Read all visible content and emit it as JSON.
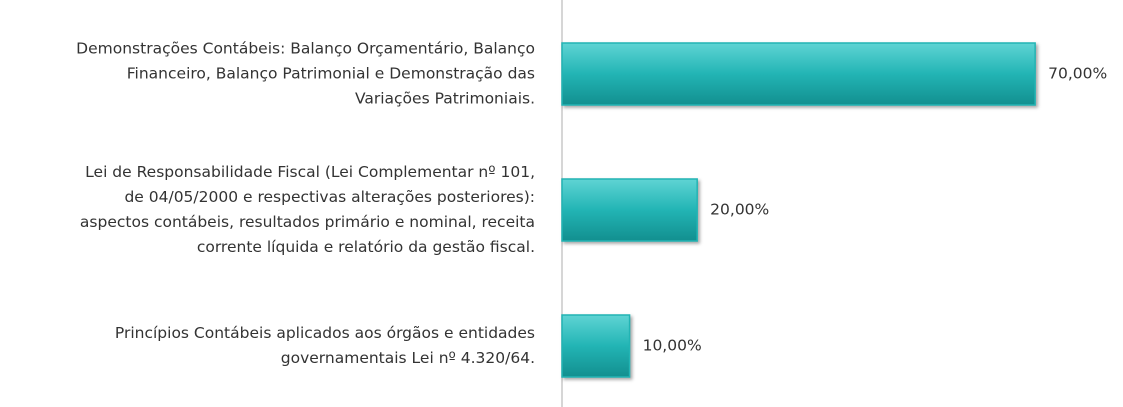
{
  "chart_data": {
    "type": "bar",
    "orientation": "horizontal",
    "categories": [
      "Demonstrações Contábeis: Balanço Orçamentário, Balanço\nFinanceiro, Balanço Patrimonial e Demonstração das\nVariações Patrimoniais.",
      "Lei de Responsabilidade Fiscal (Lei Complementar nº 101,\nde 04/05/2000 e respectivas alterações posteriores):\naspectos contábeis, resultados primário e nominal, receita\ncorrente líquida e relatório da gestão fiscal.",
      "Princípios Contábeis aplicados aos órgãos e entidades\ngovernamentais Lei nº 4.320/64."
    ],
    "values": [
      70,
      20,
      10
    ],
    "value_labels": [
      "70,00%",
      "20,00%",
      "10,00%"
    ],
    "color": "#22b4b4",
    "xlim": [
      0,
      83
    ]
  }
}
